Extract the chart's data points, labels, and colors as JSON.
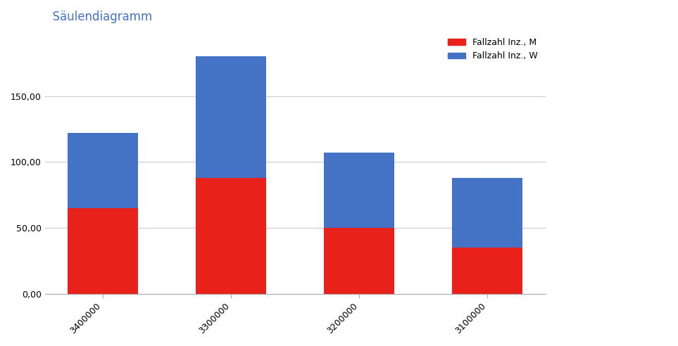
{
  "categories": [
    "3400000",
    "3300000",
    "3200000",
    "3100000"
  ],
  "red_values": [
    65,
    88,
    50,
    35
  ],
  "blue_values": [
    57,
    92,
    57,
    53
  ],
  "red_color": "#e8221a",
  "blue_color": "#4472c4",
  "red_label": "Fallzahl Inz., M",
  "blue_label": "Fallzahl Inz., W",
  "title": "Säulendiagramm",
  "title_color": "#4472c4",
  "ylabel": "",
  "ylim": [
    0,
    200
  ],
  "yticks": [
    0,
    50,
    100,
    150
  ],
  "ytick_labels": [
    "0,00",
    "50,00",
    "100,00",
    "150,00"
  ],
  "bg_color": "#ffffff",
  "plot_bg": "#ffffff",
  "grid_color": "#cccccc",
  "bar_width": 0.55,
  "legend_fontsize": 9,
  "tick_fontsize": 9,
  "title_fontsize": 12
}
